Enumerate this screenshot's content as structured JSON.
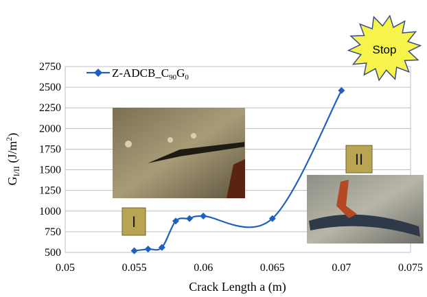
{
  "chart_data": {
    "type": "line",
    "title": "",
    "xlabel": "Crack Length a (m)",
    "ylabel": "G",
    "ylabel_sub": "I/II",
    "ylabel_unit": " (J/m",
    "ylabel_sup": "2",
    "ylabel_close": ")",
    "xlim": [
      0.05,
      0.075
    ],
    "ylim": [
      500,
      2750
    ],
    "x_ticks": [
      "0.05",
      "0.055",
      "0.06",
      "0.065",
      "0.07",
      "0.075"
    ],
    "y_ticks": [
      "500",
      "750",
      "1000",
      "1250",
      "1500",
      "1750",
      "2000",
      "2250",
      "2500",
      "2750"
    ],
    "grid": "horizontal",
    "legend_position": "top-left",
    "series": [
      {
        "name_main": "Z-ADCB_C",
        "name_sub1": "90",
        "name_mid": "G",
        "name_sub2": "0",
        "color": "#1f5fbf",
        "marker": "diamond",
        "x": [
          0.055,
          0.056,
          0.057,
          0.058,
          0.059,
          0.06,
          0.065,
          0.07
        ],
        "y": [
          520,
          540,
          560,
          880,
          910,
          940,
          910,
          2460
        ]
      }
    ],
    "annotations": {
      "region_one": "I",
      "region_two": "II",
      "stop_label": "Stop"
    }
  }
}
